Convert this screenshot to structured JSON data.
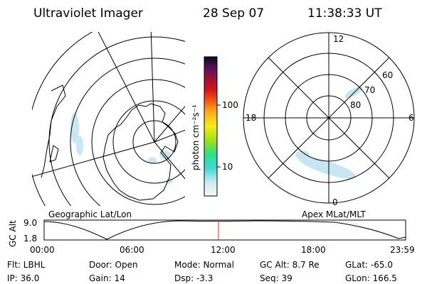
{
  "header": {
    "title": "Ultraviolet Imager",
    "date": "28 Sep 07",
    "time": "11:38:33 UT"
  },
  "left_map": {
    "caption": "Geographic Lat/Lon"
  },
  "colorbar": {
    "unit_label": "photon cm⁻²s⁻¹",
    "ticks": [
      "100",
      "10"
    ]
  },
  "right_map": {
    "caption": "Apex MLat/MLT",
    "mlt_labels": [
      "12",
      "18",
      "6",
      "0"
    ],
    "lat_labels": [
      "60",
      "70",
      "80"
    ]
  },
  "altitude": {
    "axis_label": "GC Alt",
    "yticks": [
      "9.0",
      "1.8"
    ],
    "xticks": [
      "00:00",
      "06:00",
      "12:00",
      "18:00",
      "23:59"
    ]
  },
  "info": {
    "rows": [
      [
        "Flt: LBHL",
        "Door: Open",
        "Mode: Normal",
        "GC Alt: 8.7 Re",
        "GLat: -65.0"
      ],
      [
        "IP: 36.0",
        "Gain: 14",
        "Dsp:    -3.3",
        "Seq: 39",
        "GLon: 166.5"
      ]
    ]
  }
}
